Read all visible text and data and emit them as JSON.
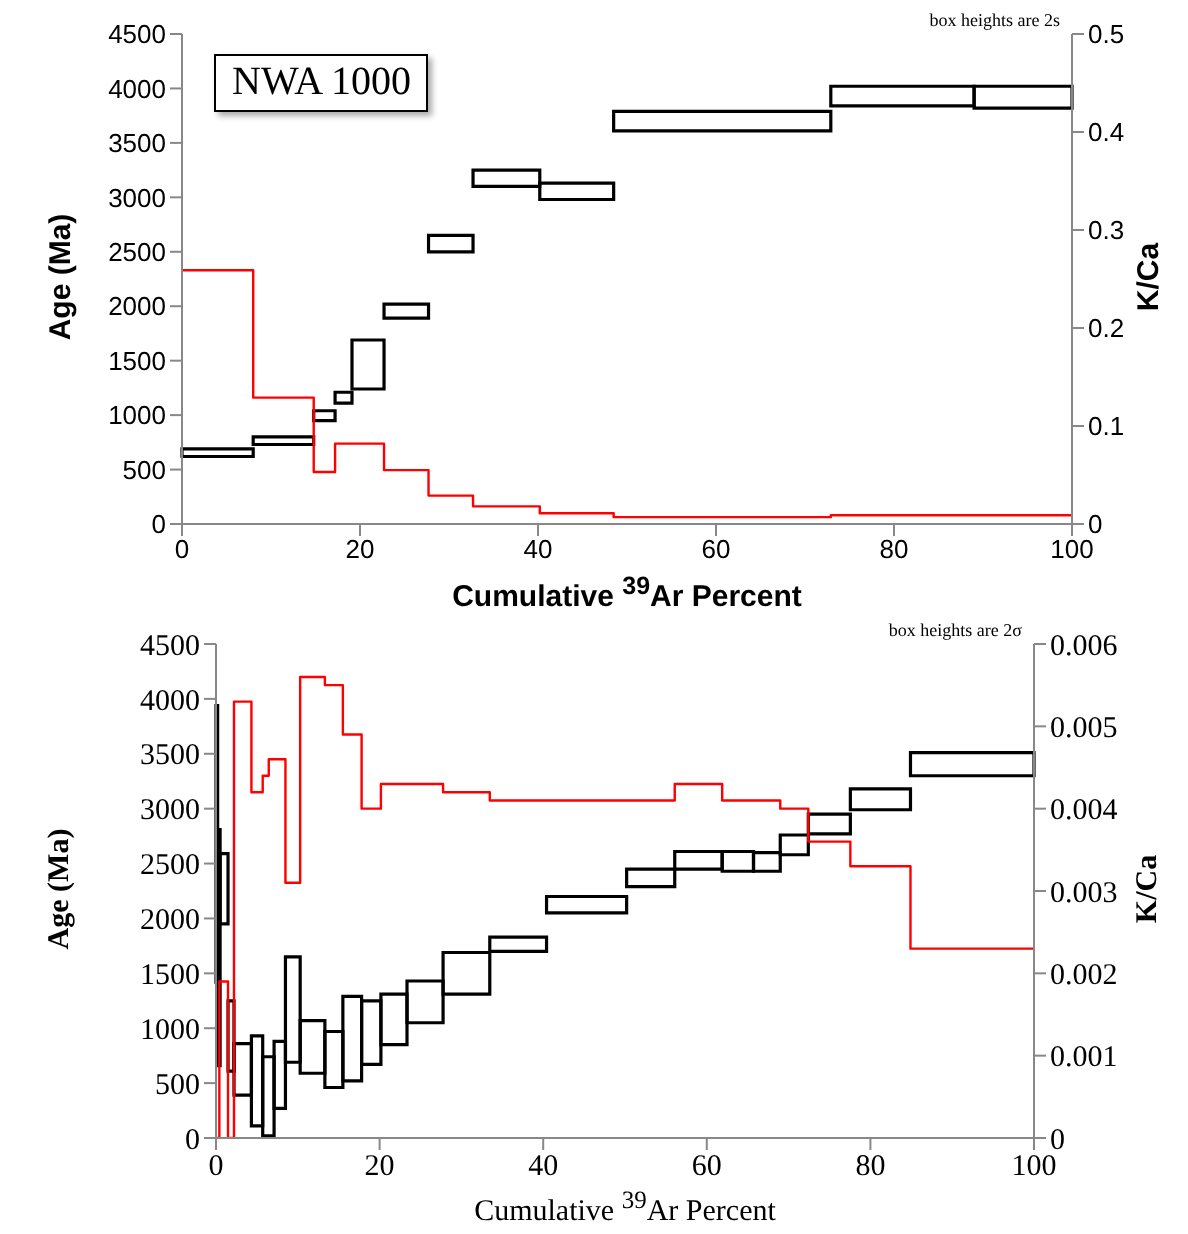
{
  "chart_data": [
    {
      "type": "histogram",
      "annotations": [
        "NWA 1000",
        "box heights are 2s"
      ],
      "xlabel": "Cumulative $^{39}$Ar Percent",
      "ylabel": "Age (Ma)",
      "y2label": "K/Ca",
      "xlim": [
        0,
        100
      ],
      "xticks": [
        0,
        20,
        40,
        60,
        80,
        100
      ],
      "ylim": [
        0,
        4500
      ],
      "yticks": [
        0,
        500,
        1000,
        1500,
        2000,
        2500,
        3000,
        3500,
        4000,
        4500
      ],
      "y2lim": [
        0,
        0.5
      ],
      "y2ticks": [
        0,
        0.1,
        0.2,
        0.3,
        0.4,
        0.5
      ],
      "grid": false,
      "series": [
        {
          "color": "#000000",
          "bins": [
            0,
            8.0,
            14.8,
            17.2,
            19.1,
            22.7,
            27.7,
            32.7,
            40.2,
            48.5,
            72.9,
            89.0,
            100
          ],
          "base": [
            620,
            730,
            950,
            1110,
            1240,
            1890,
            2500,
            3100,
            2980,
            3610,
            3840,
            3820
          ],
          "values": [
            70,
            70,
            90,
            100,
            450,
            130,
            150,
            150,
            150,
            180,
            180,
            200
          ]
        },
        {
          "type": "step",
          "axis": "y2",
          "color": "#ff0000",
          "marker": "none",
          "x": [
            0,
            8.0,
            14.8,
            17.2,
            22.7,
            27.7,
            32.7,
            40.2,
            48.5,
            72.9,
            100
          ],
          "values": [
            0.259,
            0.129,
            0.053,
            0.082,
            0.055,
            0.029,
            0.018,
            0.011,
            0.007,
            0.009,
            0.009
          ]
        }
      ]
    },
    {
      "type": "histogram",
      "annotations": [
        "box heights are 2σ"
      ],
      "xlabel": "Cumulative $^{39}$Ar Percent",
      "ylabel": "Age (Ma)",
      "y2label": "K/Ca",
      "xlim": [
        0,
        100
      ],
      "xticks": [
        0,
        20,
        40,
        60,
        80,
        100
      ],
      "ylim": [
        0,
        4500
      ],
      "yticks": [
        0,
        500,
        1000,
        1500,
        2000,
        2500,
        3000,
        3500,
        4000,
        4500
      ],
      "y2lim": [
        0,
        0.006
      ],
      "y2ticks": [
        0,
        0.001,
        0.002,
        0.003,
        0.004,
        0.005,
        0.006
      ],
      "grid": false,
      "series": [
        {
          "color": "#000000",
          "bins": [
            0,
            0.2,
            0.5,
            1.47,
            2.2,
            4.33,
            5.71,
            7.1,
            8.49,
            10.29,
            13.31,
            15.51,
            17.8,
            20.16,
            23.35,
            27.76,
            33.47,
            40.41,
            50.2,
            56.08,
            61.88,
            65.71,
            68.98,
            72.41,
            77.55,
            84.9,
            100
          ],
          "base": [
            1420,
            660,
            1950,
            610,
            390,
            110,
            20,
            270,
            690,
            590,
            460,
            520,
            670,
            850,
            1050,
            1310,
            1700,
            2050,
            2290,
            2450,
            2430,
            2430,
            2580,
            2770,
            2990,
            3300
          ],
          "values": [
            2520,
            2150,
            640,
            640,
            470,
            820,
            720,
            610,
            960,
            480,
            510,
            770,
            580,
            460,
            380,
            380,
            130,
            150,
            160,
            160,
            180,
            170,
            180,
            180,
            190,
            210
          ]
        },
        {
          "type": "step",
          "axis": "y2",
          "color": "#ff0000",
          "marker": "none",
          "x": [
            0,
            0.41,
            1.47,
            2.2,
            4.33,
            5.71,
            6.45,
            8.49,
            10.29,
            13.31,
            15.51,
            17.8,
            20.16,
            23.35,
            27.76,
            33.47,
            40.41,
            50.2,
            56.08,
            61.88,
            65.71,
            68.98,
            72.41,
            77.55,
            84.9,
            100
          ],
          "values": [
            0,
            0.0019,
            0,
            0.0053,
            0.0042,
            0.0044,
            0.0046,
            0.0031,
            0.0056,
            0.0055,
            0.0049,
            0.004,
            0.0043,
            0.0043,
            0.0042,
            0.0041,
            0.0041,
            0.0041,
            0.0043,
            0.0041,
            0.0041,
            0.004,
            0.0036,
            0.0033,
            0.0023,
            0.0023
          ]
        }
      ]
    }
  ]
}
